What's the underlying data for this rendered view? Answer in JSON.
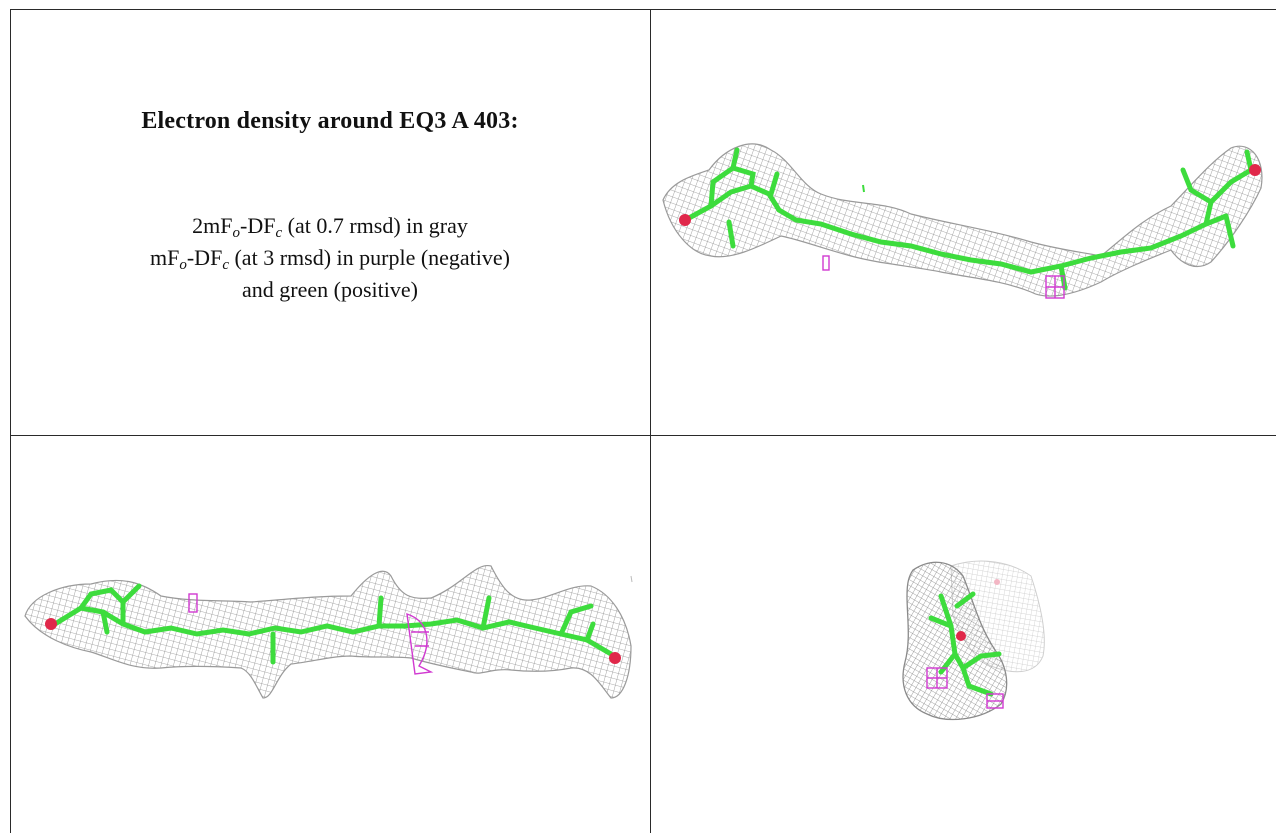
{
  "caption": {
    "title": "Electron density around EQ3 A 403:",
    "line1": {
      "prefix": "2mF",
      "sub1": "o",
      "mid": "-DF",
      "sub2": "c",
      "suffix": " (at 0.7 rmsd) in gray"
    },
    "line2": {
      "prefix": "mF",
      "sub1": "o",
      "mid": "-DF",
      "sub2": "c",
      "suffix": " (at 3 rmsd) in purple (negative)"
    },
    "line3": "and green (positive)"
  },
  "colors": {
    "mesh_gray": "#8f8f8f",
    "ligand_green": "#3ddc3d",
    "negative_purple": "#d13ad1",
    "oxygen_red": "#e0284a",
    "grid_line": "#2a2a2a"
  },
  "views": [
    {
      "id": "top-right-view",
      "description_icon": "ligand-density-view"
    },
    {
      "id": "bottom-left-view",
      "description_icon": "ligand-density-view"
    },
    {
      "id": "bottom-right-view",
      "description_icon": "ligand-density-view"
    }
  ]
}
